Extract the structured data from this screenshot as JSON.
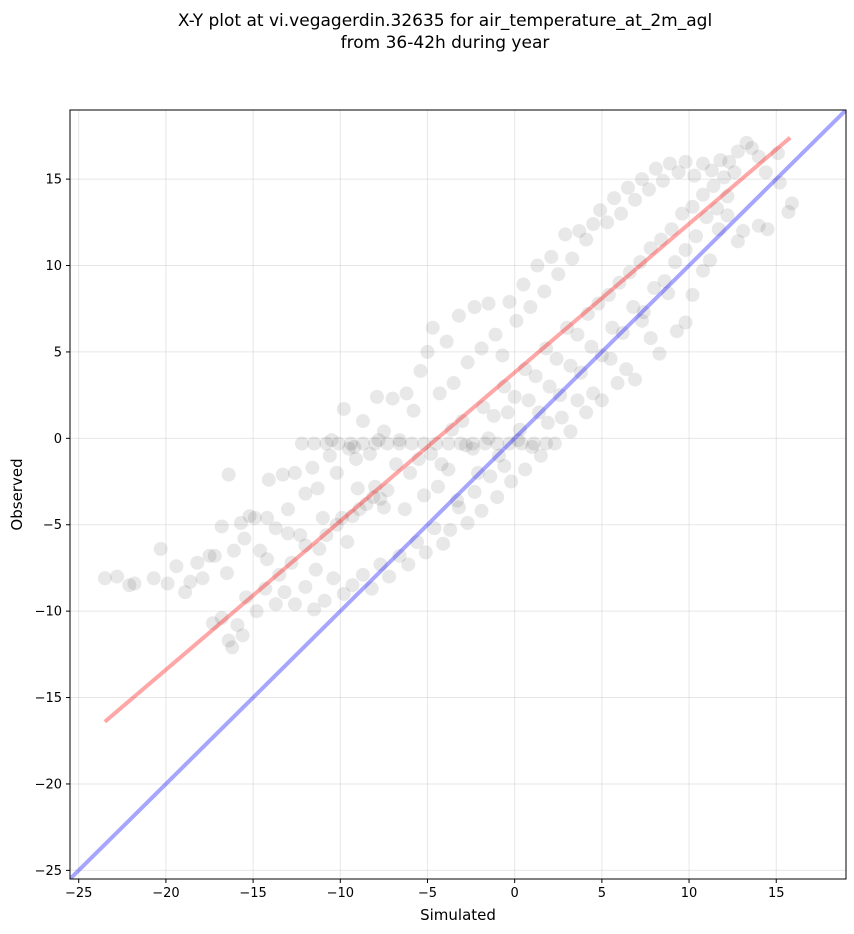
{
  "chart_data": {
    "type": "scatter",
    "title": [
      "X-Y plot at vi.vegagerdin.32635 for air_temperature_at_2m_agl",
      "from 36-42h during year"
    ],
    "xlabel": "Simulated",
    "ylabel": "Observed",
    "xlim": [
      -25.5,
      19
    ],
    "ylim": [
      -25.5,
      19
    ],
    "xticks": [
      -25,
      -20,
      -15,
      -10,
      -5,
      0,
      5,
      10,
      15
    ],
    "yticks": [
      -25,
      -20,
      -15,
      -10,
      -5,
      0,
      5,
      10,
      15
    ],
    "xtick_labels": [
      "−25",
      "−20",
      "−15",
      "−10",
      "−5",
      "0",
      "5",
      "10",
      "15"
    ],
    "ytick_labels": [
      "−25",
      "−20",
      "−15",
      "−10",
      "−5",
      "0",
      "5",
      "10",
      "15"
    ],
    "grid": true,
    "series": [
      {
        "kind": "scatter",
        "color": "#000000",
        "alpha": 0.05,
        "points": [
          [
            -23.5,
            -8.1
          ],
          [
            -22.8,
            -8.0
          ],
          [
            -22.1,
            -8.5
          ],
          [
            -21.8,
            -8.4
          ],
          [
            -20.7,
            -8.1
          ],
          [
            -20.3,
            -6.4
          ],
          [
            -19.9,
            -8.4
          ],
          [
            -19.4,
            -7.4
          ],
          [
            -18.9,
            -8.9
          ],
          [
            -18.6,
            -8.3
          ],
          [
            -18.2,
            -7.2
          ],
          [
            -17.9,
            -8.1
          ],
          [
            -17.5,
            -6.8
          ],
          [
            -17.2,
            -6.8
          ],
          [
            -16.8,
            -5.1
          ],
          [
            -16.5,
            -7.8
          ],
          [
            -16.4,
            -2.1
          ],
          [
            -16.1,
            -6.5
          ],
          [
            -15.7,
            -4.9
          ],
          [
            -15.5,
            -5.8
          ],
          [
            -15.2,
            -4.5
          ],
          [
            -14.9,
            -4.6
          ],
          [
            -14.6,
            -6.5
          ],
          [
            -14.2,
            -4.6
          ],
          [
            -14.1,
            -2.4
          ],
          [
            -13.7,
            -5.2
          ],
          [
            -13.3,
            -2.1
          ],
          [
            -13.0,
            -4.1
          ],
          [
            -12.6,
            -2.0
          ],
          [
            -12.3,
            -5.6
          ],
          [
            -12.0,
            -3.2
          ],
          [
            -11.6,
            -1.7
          ],
          [
            -11.3,
            -2.9
          ],
          [
            -11.0,
            -4.6
          ],
          [
            -10.6,
            -1.0
          ],
          [
            -10.2,
            -2.0
          ],
          [
            -9.8,
            1.7
          ],
          [
            -9.5,
            -0.6
          ],
          [
            -9.1,
            -1.2
          ],
          [
            -8.7,
            1.0
          ],
          [
            -8.3,
            -0.9
          ],
          [
            -7.9,
            2.4
          ],
          [
            -7.5,
            0.4
          ],
          [
            -7.0,
            2.3
          ],
          [
            -6.6,
            -0.1
          ],
          [
            -6.2,
            2.6
          ],
          [
            -5.8,
            1.6
          ],
          [
            -5.4,
            3.9
          ],
          [
            -5.0,
            5.0
          ],
          [
            -4.7,
            6.4
          ],
          [
            -4.3,
            2.6
          ],
          [
            -3.9,
            5.6
          ],
          [
            -3.5,
            3.2
          ],
          [
            -3.2,
            7.1
          ],
          [
            -2.7,
            4.4
          ],
          [
            -2.3,
            7.6
          ],
          [
            -1.9,
            5.2
          ],
          [
            -1.5,
            7.8
          ],
          [
            -1.1,
            6.0
          ],
          [
            -0.7,
            4.8
          ],
          [
            -0.3,
            7.9
          ],
          [
            0.1,
            6.8
          ],
          [
            0.5,
            8.9
          ],
          [
            0.9,
            7.6
          ],
          [
            1.3,
            10.0
          ],
          [
            1.7,
            8.5
          ],
          [
            2.1,
            10.5
          ],
          [
            2.5,
            9.5
          ],
          [
            2.9,
            11.8
          ],
          [
            3.3,
            10.4
          ],
          [
            3.7,
            12.0
          ],
          [
            4.1,
            11.5
          ],
          [
            4.5,
            12.4
          ],
          [
            4.9,
            13.2
          ],
          [
            5.3,
            12.5
          ],
          [
            5.7,
            13.9
          ],
          [
            6.1,
            13.0
          ],
          [
            6.5,
            14.5
          ],
          [
            6.9,
            13.8
          ],
          [
            7.3,
            15.0
          ],
          [
            7.7,
            14.4
          ],
          [
            8.1,
            15.6
          ],
          [
            8.5,
            14.9
          ],
          [
            8.9,
            15.9
          ],
          [
            9.4,
            15.4
          ],
          [
            9.8,
            16.0
          ],
          [
            10.3,
            15.2
          ],
          [
            10.8,
            15.9
          ],
          [
            11.3,
            15.5
          ],
          [
            11.8,
            16.1
          ],
          [
            12.3,
            16.0
          ],
          [
            12.8,
            16.6
          ],
          [
            13.3,
            17.1
          ],
          [
            13.6,
            16.8
          ],
          [
            14.0,
            16.3
          ],
          [
            14.4,
            15.4
          ],
          [
            15.1,
            16.5
          ],
          [
            15.7,
            13.1
          ],
          [
            15.9,
            13.6
          ],
          [
            15.2,
            14.8
          ],
          [
            14.5,
            12.1
          ],
          [
            14.0,
            12.3
          ],
          [
            13.1,
            12.0
          ],
          [
            12.8,
            11.4
          ],
          [
            12.2,
            12.9
          ],
          [
            11.7,
            12.1
          ],
          [
            11.2,
            10.3
          ],
          [
            10.8,
            9.7
          ],
          [
            10.2,
            8.3
          ],
          [
            9.8,
            6.7
          ],
          [
            9.3,
            6.2
          ],
          [
            8.8,
            8.4
          ],
          [
            8.3,
            4.9
          ],
          [
            7.8,
            5.8
          ],
          [
            7.3,
            6.8
          ],
          [
            6.9,
            3.4
          ],
          [
            6.4,
            4.0
          ],
          [
            5.9,
            3.2
          ],
          [
            5.5,
            4.6
          ],
          [
            5.0,
            2.2
          ],
          [
            4.5,
            2.6
          ],
          [
            4.1,
            1.5
          ],
          [
            3.6,
            2.2
          ],
          [
            3.2,
            0.4
          ],
          [
            2.7,
            1.2
          ],
          [
            2.3,
            -0.3
          ],
          [
            1.9,
            0.9
          ],
          [
            1.5,
            -1.0
          ],
          [
            1.0,
            -0.5
          ],
          [
            0.6,
            -1.8
          ],
          [
            0.2,
            -0.1
          ],
          [
            -0.2,
            -2.5
          ],
          [
            -0.6,
            -1.6
          ],
          [
            -1.0,
            -3.4
          ],
          [
            -1.4,
            -2.2
          ],
          [
            -1.9,
            -4.2
          ],
          [
            -2.3,
            -3.1
          ],
          [
            -2.7,
            -4.9
          ],
          [
            -3.2,
            -4.0
          ],
          [
            -3.7,
            -5.3
          ],
          [
            -4.1,
            -6.1
          ],
          [
            -4.6,
            -5.2
          ],
          [
            -5.1,
            -6.6
          ],
          [
            -5.6,
            -6.0
          ],
          [
            -6.1,
            -7.3
          ],
          [
            -6.6,
            -6.8
          ],
          [
            -7.2,
            -8.0
          ],
          [
            -7.7,
            -7.3
          ],
          [
            -8.2,
            -8.7
          ],
          [
            -8.7,
            -7.9
          ],
          [
            -9.3,
            -8.5
          ],
          [
            -9.8,
            -9.0
          ],
          [
            -10.4,
            -8.1
          ],
          [
            -10.9,
            -9.4
          ],
          [
            -11.5,
            -9.9
          ],
          [
            -12.0,
            -8.6
          ],
          [
            -12.6,
            -9.6
          ],
          [
            -13.2,
            -8.9
          ],
          [
            -13.7,
            -9.6
          ],
          [
            -14.3,
            -8.7
          ],
          [
            -14.8,
            -10.0
          ],
          [
            -15.4,
            -9.2
          ],
          [
            -15.9,
            -10.8
          ],
          [
            -16.4,
            -11.7
          ],
          [
            -16.8,
            -10.4
          ],
          [
            -16.2,
            -12.1
          ],
          [
            -15.6,
            -11.4
          ],
          [
            -17.3,
            -10.7
          ],
          [
            -12.2,
            -0.3
          ],
          [
            -11.5,
            -0.3
          ],
          [
            -10.8,
            -0.3
          ],
          [
            -10.1,
            -0.3
          ],
          [
            -9.4,
            -0.3
          ],
          [
            -8.7,
            -0.3
          ],
          [
            -8.0,
            -0.3
          ],
          [
            -7.3,
            -0.3
          ],
          [
            -6.6,
            -0.3
          ],
          [
            -5.9,
            -0.3
          ],
          [
            -5.2,
            -0.3
          ],
          [
            -4.5,
            -0.3
          ],
          [
            -3.8,
            -0.3
          ],
          [
            -3.1,
            -0.3
          ],
          [
            -2.4,
            -0.3
          ],
          [
            -1.7,
            -0.3
          ],
          [
            -1.0,
            -0.3
          ],
          [
            -0.3,
            -0.3
          ],
          [
            0.4,
            -0.3
          ],
          [
            1.1,
            -0.3
          ],
          [
            1.8,
            -0.3
          ],
          [
            -10.5,
            -0.1
          ],
          [
            -9.2,
            -0.5
          ],
          [
            -7.8,
            -0.1
          ],
          [
            -8.5,
            -3.8
          ],
          [
            -8.1,
            -3.4
          ],
          [
            -7.7,
            -3.5
          ],
          [
            -7.3,
            -3.0
          ],
          [
            -8.9,
            -4.1
          ],
          [
            -7.5,
            -4.0
          ],
          [
            -8.0,
            -2.8
          ],
          [
            -9.3,
            -4.5
          ],
          [
            -10.2,
            -5.0
          ],
          [
            -9.6,
            -6.0
          ],
          [
            -10.8,
            -5.6
          ],
          [
            -11.2,
            -6.4
          ],
          [
            -6.0,
            -2.0
          ],
          [
            -5.5,
            -1.2
          ],
          [
            -4.8,
            -0.9
          ],
          [
            -4.2,
            -1.5
          ],
          [
            -3.6,
            0.5
          ],
          [
            -3.0,
            1.0
          ],
          [
            -2.4,
            -0.6
          ],
          [
            -1.8,
            1.8
          ],
          [
            -1.2,
            1.3
          ],
          [
            -0.6,
            3.0
          ],
          [
            0.0,
            2.4
          ],
          [
            0.6,
            4.0
          ],
          [
            1.2,
            3.6
          ],
          [
            1.8,
            5.2
          ],
          [
            2.4,
            4.6
          ],
          [
            3.0,
            6.4
          ],
          [
            3.6,
            6.0
          ],
          [
            4.2,
            7.2
          ],
          [
            4.8,
            7.8
          ],
          [
            5.4,
            8.3
          ],
          [
            6.0,
            9.0
          ],
          [
            6.6,
            9.6
          ],
          [
            7.2,
            10.2
          ],
          [
            7.8,
            11.0
          ],
          [
            8.4,
            11.5
          ],
          [
            9.0,
            12.1
          ],
          [
            9.6,
            13.0
          ],
          [
            10.2,
            13.4
          ],
          [
            10.8,
            14.1
          ],
          [
            11.4,
            14.6
          ],
          [
            12.0,
            15.1
          ],
          [
            12.6,
            15.4
          ],
          [
            -12.8,
            -7.2
          ],
          [
            -12.0,
            -6.2
          ],
          [
            -11.4,
            -7.6
          ],
          [
            -13.5,
            -7.9
          ],
          [
            -14.2,
            -7.0
          ],
          [
            -13.0,
            -5.5
          ],
          [
            -9.9,
            -4.6
          ],
          [
            -9.0,
            -2.9
          ],
          [
            -6.8,
            -1.5
          ],
          [
            -6.3,
            -4.1
          ],
          [
            -5.2,
            -3.3
          ],
          [
            -4.4,
            -2.8
          ],
          [
            -3.8,
            -1.8
          ],
          [
            -3.3,
            -3.6
          ],
          [
            -2.8,
            -0.4
          ],
          [
            -2.1,
            -2.0
          ],
          [
            -1.5,
            0.0
          ],
          [
            -0.9,
            -1.0
          ],
          [
            -0.4,
            1.5
          ],
          [
            0.3,
            0.5
          ],
          [
            0.8,
            2.2
          ],
          [
            1.4,
            1.5
          ],
          [
            2.0,
            3.0
          ],
          [
            2.6,
            2.5
          ],
          [
            3.2,
            4.2
          ],
          [
            3.8,
            3.8
          ],
          [
            4.4,
            5.3
          ],
          [
            5.0,
            4.8
          ],
          [
            5.6,
            6.4
          ],
          [
            6.2,
            6.1
          ],
          [
            6.8,
            7.6
          ],
          [
            7.4,
            7.3
          ],
          [
            8.0,
            8.7
          ],
          [
            8.6,
            9.1
          ],
          [
            9.2,
            10.2
          ],
          [
            9.8,
            10.9
          ],
          [
            10.4,
            11.7
          ],
          [
            11.0,
            12.8
          ],
          [
            11.6,
            13.3
          ],
          [
            12.2,
            14.0
          ]
        ]
      },
      {
        "kind": "line",
        "name": "",
        "color": "#ff0000",
        "alpha": 0.35,
        "x": [
          -23.5,
          15.8
        ],
        "y": [
          -16.4,
          17.4
        ]
      },
      {
        "kind": "line",
        "name": "",
        "color": "#0000ff",
        "alpha": 0.35,
        "x": [
          -25.5,
          19
        ],
        "y": [
          -25.5,
          19
        ]
      }
    ]
  }
}
